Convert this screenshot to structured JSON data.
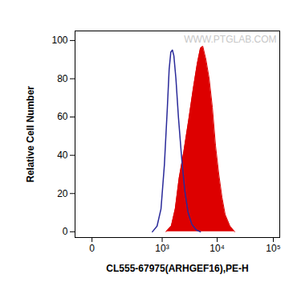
{
  "chart_data": {
    "type": "histogram",
    "x_label": "CL555-67975(ARHGEF16),PE-H",
    "y_label": "Relative Cell Number",
    "annotations": [
      "WWW.PTGLAB.COM"
    ],
    "log": "x",
    "xlim": [
      -60,
      130000
    ],
    "xticks": [
      0,
      {
        "value": 1000,
        "label": "10³"
      },
      {
        "value": 10000,
        "label": "10⁴"
      },
      {
        "value": 100000,
        "label": "10⁵"
      }
    ],
    "ylim": [
      -3,
      105
    ],
    "yticks": [
      0,
      20,
      40,
      60,
      80,
      100
    ],
    "series": [
      {
        "type": "area",
        "color": "#dd0000",
        "x": [
          1180,
          1480,
          1750,
          2060,
          2510,
          3060,
          3730,
          4400,
          5010,
          5530,
          6300,
          7200,
          8210,
          9350,
          10700,
          12200,
          13900,
          16900,
          20600
        ],
        "values": [
          0,
          3,
          12,
          28,
          42,
          58,
          75,
          88,
          96,
          97,
          90,
          80,
          65,
          45,
          30,
          18,
          9,
          3,
          0
        ]
      },
      {
        "type": "line",
        "color": "#2a2a9a",
        "x": [
          650,
          800,
          950,
          1100,
          1250,
          1350,
          1450,
          1550,
          1650,
          1800,
          2000,
          2300,
          2600,
          3000,
          3500,
          4200,
          5000
        ],
        "values": [
          0,
          3,
          12,
          35,
          65,
          85,
          94,
          95,
          92,
          80,
          60,
          38,
          22,
          10,
          4,
          1,
          0
        ]
      }
    ]
  }
}
